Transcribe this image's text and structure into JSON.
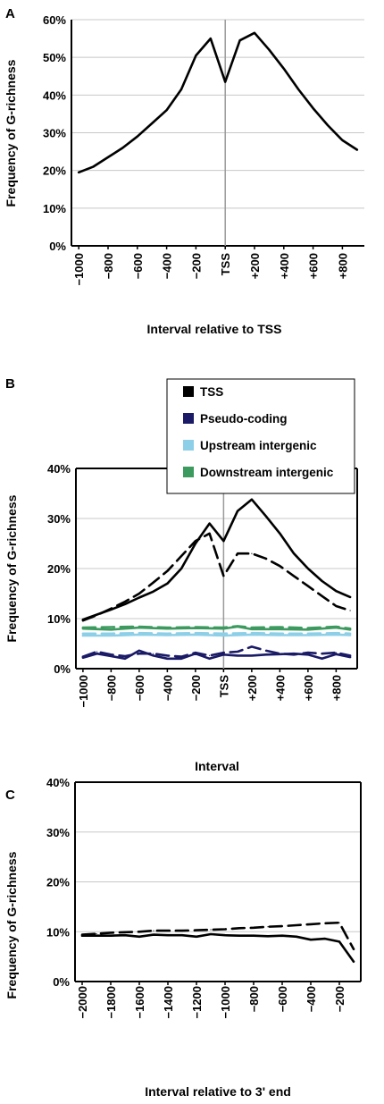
{
  "chart_data": [
    {
      "panel": "A",
      "type": "line",
      "ylabel": "Frequency of G-richness",
      "xlabel": "Interval relative to TSS",
      "ylim": [
        0,
        60
      ],
      "yticks": [
        "0%",
        "10%",
        "20%",
        "30%",
        "40%",
        "50%",
        "60%"
      ],
      "xticks": [
        "−1000",
        "−800",
        "−600",
        "−400",
        "−200",
        "TSS",
        "+200",
        "+400",
        "+600",
        "+800"
      ],
      "grid": true,
      "series": [
        {
          "style": "solid",
          "color": "#000000",
          "points": [
            [
              -1000,
              19.5
            ],
            [
              -900,
              21.0
            ],
            [
              -800,
              23.5
            ],
            [
              -700,
              26.0
            ],
            [
              -600,
              29.0
            ],
            [
              -500,
              32.5
            ],
            [
              -400,
              36.0
            ],
            [
              -300,
              41.5
            ],
            [
              -200,
              50.5
            ],
            [
              -100,
              55.0
            ],
            [
              0,
              43.5
            ],
            [
              100,
              54.5
            ],
            [
              200,
              56.5
            ],
            [
              300,
              52.0
            ],
            [
              400,
              47.0
            ],
            [
              500,
              41.5
            ],
            [
              600,
              36.5
            ],
            [
              700,
              32.0
            ],
            [
              800,
              28.0
            ],
            [
              900,
              25.5
            ]
          ]
        }
      ]
    },
    {
      "panel": "B",
      "type": "line",
      "ylabel": "Frequency of G-richness",
      "xlabel": "Interval",
      "ylim": [
        0,
        40
      ],
      "yticks": [
        "0%",
        "10%",
        "20%",
        "30%",
        "40%"
      ],
      "xticks": [
        "−1000",
        "−800",
        "−600",
        "−400",
        "−200",
        "TSS",
        "+200",
        "+400",
        "+600",
        "+800"
      ],
      "grid": true,
      "legend": [
        {
          "label": "TSS",
          "color": "#000000"
        },
        {
          "label": "Pseudo-coding",
          "color": "#1a1a66"
        },
        {
          "label": "Upstream intergenic",
          "color": "#8ecfe8"
        },
        {
          "label": "Downstream intergenic",
          "color": "#3c9a5f"
        }
      ],
      "series": [
        {
          "legend": "TSS",
          "style": "solid",
          "color": "#000000",
          "points": [
            [
              -1000,
              9.8
            ],
            [
              -900,
              10.8
            ],
            [
              -800,
              11.8
            ],
            [
              -700,
              12.9
            ],
            [
              -600,
              14.2
            ],
            [
              -500,
              15.4
            ],
            [
              -400,
              17.0
            ],
            [
              -300,
              20.0
            ],
            [
              -200,
              25.0
            ],
            [
              -100,
              29.0
            ],
            [
              0,
              25.5
            ],
            [
              100,
              31.5
            ],
            [
              200,
              33.8
            ],
            [
              300,
              30.5
            ],
            [
              400,
              27.0
            ],
            [
              500,
              23.0
            ],
            [
              600,
              20.0
            ],
            [
              700,
              17.5
            ],
            [
              800,
              15.5
            ],
            [
              900,
              14.3
            ]
          ]
        },
        {
          "legend": "TSS",
          "style": "dashed",
          "color": "#000000",
          "points": [
            [
              -1000,
              9.6
            ],
            [
              -900,
              10.7
            ],
            [
              -800,
              12.0
            ],
            [
              -700,
              13.4
            ],
            [
              -600,
              15.0
            ],
            [
              -500,
              17.2
            ],
            [
              -400,
              19.5
            ],
            [
              -300,
              22.5
            ],
            [
              -200,
              25.5
            ],
            [
              -100,
              27.0
            ],
            [
              0,
              18.5
            ],
            [
              100,
              23.0
            ],
            [
              200,
              23.0
            ],
            [
              300,
              22.0
            ],
            [
              400,
              20.5
            ],
            [
              500,
              18.5
            ],
            [
              600,
              16.5
            ],
            [
              700,
              14.5
            ],
            [
              800,
              12.5
            ],
            [
              900,
              11.6
            ]
          ]
        },
        {
          "legend": "Pseudo-coding",
          "style": "solid",
          "color": "#1a1a66",
          "points": [
            [
              -1000,
              2.2
            ],
            [
              -900,
              3.0
            ],
            [
              -800,
              2.5
            ],
            [
              -700,
              2.0
            ],
            [
              -600,
              3.6
            ],
            [
              -500,
              2.6
            ],
            [
              -400,
              2.0
            ],
            [
              -300,
              2.0
            ],
            [
              -200,
              3.0
            ],
            [
              -100,
              2.0
            ],
            [
              0,
              2.8
            ],
            [
              100,
              2.6
            ],
            [
              200,
              2.6
            ],
            [
              300,
              2.8
            ],
            [
              400,
              2.9
            ],
            [
              500,
              3.0
            ],
            [
              600,
              2.8
            ],
            [
              700,
              2.0
            ],
            [
              800,
              2.9
            ],
            [
              900,
              2.3
            ]
          ]
        },
        {
          "legend": "Pseudo-coding",
          "style": "dashed",
          "color": "#1a1a66",
          "points": [
            [
              -1000,
              2.4
            ],
            [
              -900,
              3.4
            ],
            [
              -800,
              2.8
            ],
            [
              -700,
              2.5
            ],
            [
              -600,
              3.0
            ],
            [
              -500,
              3.0
            ],
            [
              -400,
              2.6
            ],
            [
              -300,
              2.4
            ],
            [
              -200,
              3.2
            ],
            [
              -100,
              2.6
            ],
            [
              0,
              3.2
            ],
            [
              100,
              3.4
            ],
            [
              200,
              4.4
            ],
            [
              300,
              3.6
            ],
            [
              400,
              3.0
            ],
            [
              500,
              2.8
            ],
            [
              600,
              3.2
            ],
            [
              700,
              3.0
            ],
            [
              800,
              3.2
            ],
            [
              900,
              2.6
            ]
          ]
        },
        {
          "legend": "Upstream intergenic",
          "style": "solid",
          "color": "#8ecfe8",
          "points": [
            [
              -1000,
              6.6
            ],
            [
              -800,
              6.6
            ],
            [
              -600,
              6.8
            ],
            [
              -400,
              6.7
            ],
            [
              -200,
              6.8
            ],
            [
              0,
              6.6
            ],
            [
              200,
              6.8
            ],
            [
              400,
              6.7
            ],
            [
              600,
              6.7
            ],
            [
              800,
              6.8
            ],
            [
              900,
              6.7
            ]
          ]
        },
        {
          "legend": "Upstream intergenic",
          "style": "dashed",
          "color": "#8ecfe8",
          "points": [
            [
              -1000,
              7.0
            ],
            [
              -800,
              7.0
            ],
            [
              -600,
              7.1
            ],
            [
              -400,
              7.0
            ],
            [
              -200,
              7.1
            ],
            [
              0,
              7.0
            ],
            [
              200,
              7.1
            ],
            [
              400,
              7.0
            ],
            [
              600,
              7.0
            ],
            [
              800,
              7.1
            ],
            [
              900,
              7.0
            ]
          ]
        },
        {
          "legend": "Downstream intergenic",
          "style": "solid",
          "color": "#3c9a5f",
          "points": [
            [
              -1000,
              8.0
            ],
            [
              -800,
              7.8
            ],
            [
              -600,
              8.2
            ],
            [
              -400,
              8.0
            ],
            [
              -200,
              8.1
            ],
            [
              0,
              8.0
            ],
            [
              100,
              8.4
            ],
            [
              200,
              7.9
            ],
            [
              400,
              7.9
            ],
            [
              600,
              7.8
            ],
            [
              800,
              8.2
            ],
            [
              900,
              7.8
            ]
          ]
        },
        {
          "legend": "Downstream intergenic",
          "style": "dashed",
          "color": "#3c9a5f",
          "points": [
            [
              -1000,
              8.2
            ],
            [
              -800,
              8.3
            ],
            [
              -600,
              8.4
            ],
            [
              -400,
              8.2
            ],
            [
              -200,
              8.3
            ],
            [
              0,
              8.2
            ],
            [
              100,
              8.5
            ],
            [
              200,
              8.2
            ],
            [
              400,
              8.3
            ],
            [
              600,
              8.1
            ],
            [
              800,
              8.4
            ],
            [
              900,
              8.0
            ]
          ]
        }
      ]
    },
    {
      "panel": "C",
      "type": "line",
      "ylabel": "Frequency of G-richness",
      "xlabel": "Interval relative to 3' end",
      "ylim": [
        0,
        40
      ],
      "yticks": [
        "0%",
        "10%",
        "20%",
        "30%",
        "40%"
      ],
      "xticks": [
        "−2000",
        "−1800",
        "−1600",
        "−1400",
        "−1200",
        "−1000",
        "−800",
        "−600",
        "−400",
        "−200"
      ],
      "grid": true,
      "series": [
        {
          "style": "solid",
          "color": "#000000",
          "points": [
            [
              -2000,
              9.2
            ],
            [
              -1900,
              9.2
            ],
            [
              -1800,
              9.2
            ],
            [
              -1700,
              9.3
            ],
            [
              -1600,
              9.0
            ],
            [
              -1500,
              9.4
            ],
            [
              -1400,
              9.3
            ],
            [
              -1300,
              9.3
            ],
            [
              -1200,
              9.0
            ],
            [
              -1100,
              9.5
            ],
            [
              -1000,
              9.3
            ],
            [
              -900,
              9.2
            ],
            [
              -800,
              9.2
            ],
            [
              -700,
              9.1
            ],
            [
              -600,
              9.2
            ],
            [
              -500,
              9.0
            ],
            [
              -400,
              8.4
            ],
            [
              -300,
              8.6
            ],
            [
              -200,
              8.0
            ],
            [
              -100,
              4.0
            ]
          ]
        },
        {
          "style": "dashed",
          "color": "#000000",
          "points": [
            [
              -2000,
              9.4
            ],
            [
              -1900,
              9.6
            ],
            [
              -1800,
              9.8
            ],
            [
              -1700,
              9.9
            ],
            [
              -1600,
              10.0
            ],
            [
              -1500,
              10.2
            ],
            [
              -1400,
              10.2
            ],
            [
              -1300,
              10.2
            ],
            [
              -1200,
              10.3
            ],
            [
              -1100,
              10.4
            ],
            [
              -1000,
              10.5
            ],
            [
              -900,
              10.7
            ],
            [
              -800,
              10.8
            ],
            [
              -700,
              11.0
            ],
            [
              -600,
              11.1
            ],
            [
              -500,
              11.3
            ],
            [
              -400,
              11.5
            ],
            [
              -300,
              11.7
            ],
            [
              -200,
              11.8
            ],
            [
              -100,
              6.5
            ]
          ]
        }
      ]
    }
  ]
}
